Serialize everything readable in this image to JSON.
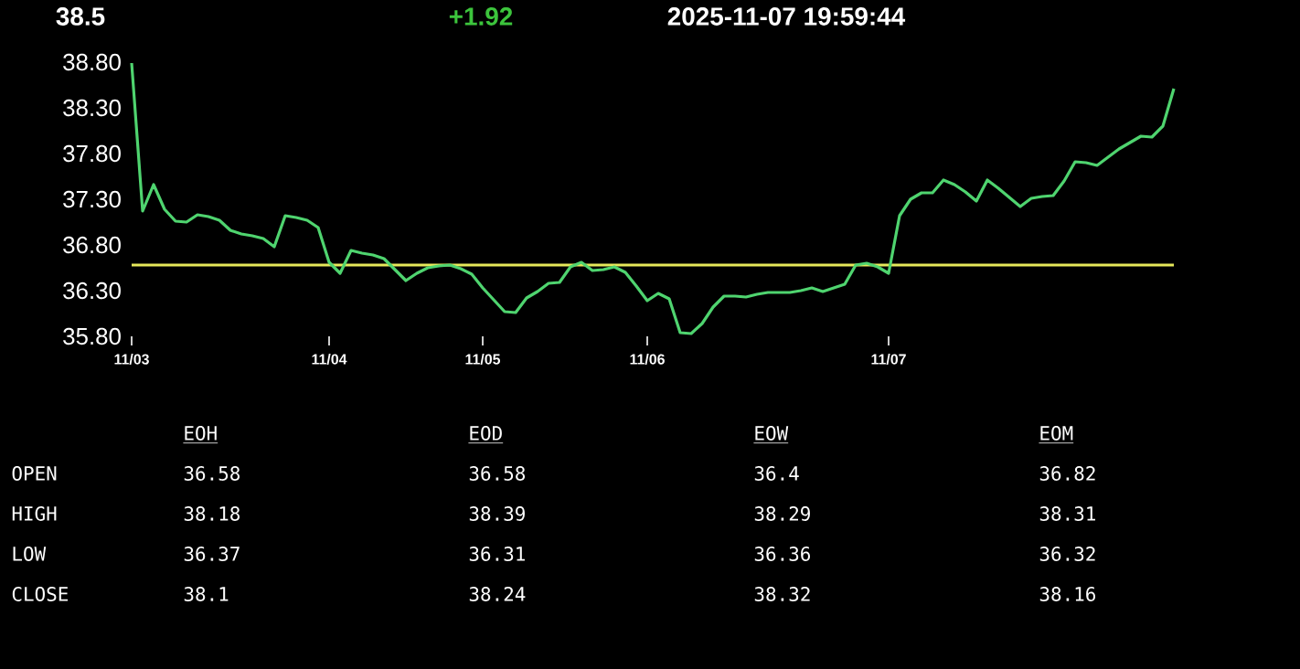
{
  "chart_data": [
    {
      "type": "line",
      "color": "#4fd46f",
      "marker": "none",
      "annotations": [
        "38.5",
        "+1.92",
        "2025-11-07 19:59:44"
      ],
      "categories": [
        "11/03",
        null,
        null,
        null,
        null,
        null,
        null,
        null,
        null,
        null,
        null,
        null,
        null,
        null,
        null,
        null,
        null,
        null,
        "11/04",
        null,
        null,
        null,
        null,
        null,
        null,
        null,
        null,
        null,
        null,
        null,
        null,
        null,
        "11/05",
        null,
        null,
        null,
        null,
        null,
        null,
        null,
        null,
        null,
        null,
        null,
        null,
        null,
        null,
        "11/06",
        null,
        null,
        null,
        null,
        null,
        null,
        null,
        null,
        null,
        null,
        null,
        null,
        null,
        null,
        null,
        null,
        null,
        null,
        null,
        null,
        null,
        "11/07",
        null,
        null,
        null,
        null,
        null,
        null,
        null,
        null,
        null,
        null,
        null,
        null,
        null,
        null,
        null,
        null,
        null,
        null,
        null,
        null,
        null,
        null,
        null,
        null,
        null,
        null
      ],
      "values": [
        38.79,
        37.17,
        37.46,
        37.19,
        37.06,
        37.05,
        37.13,
        37.11,
        37.07,
        36.96,
        36.92,
        36.9,
        36.87,
        36.78,
        37.12,
        37.1,
        37.07,
        36.99,
        36.61,
        36.49,
        36.74,
        36.71,
        36.69,
        36.65,
        36.53,
        36.41,
        36.49,
        36.55,
        36.57,
        36.58,
        36.54,
        36.48,
        36.33,
        36.2,
        36.07,
        36.06,
        36.22,
        36.29,
        36.38,
        36.39,
        36.56,
        36.61,
        36.52,
        36.53,
        36.56,
        36.5,
        36.35,
        36.19,
        36.27,
        36.21,
        35.84,
        35.83,
        35.94,
        36.12,
        36.24,
        36.24,
        36.23,
        36.26,
        36.28,
        36.28,
        36.28,
        36.3,
        36.33,
        36.29,
        36.33,
        36.37,
        36.58,
        36.6,
        36.56,
        36.49,
        37.12,
        37.3,
        37.37,
        37.37,
        37.51,
        37.46,
        37.38,
        37.28,
        37.51,
        37.42,
        37.32,
        37.22,
        37.31,
        37.33,
        37.34,
        37.5,
        37.71,
        37.7,
        37.67,
        37.76,
        37.85,
        37.92,
        37.99,
        37.98,
        38.1,
        38.51
      ],
      "ylim": [
        35.8,
        38.8
      ],
      "yticks": [
        {
          "value": 35.8,
          "label": "35.80"
        },
        {
          "value": 36.3,
          "label": "36.30"
        },
        {
          "value": 36.8,
          "label": "36.80"
        },
        {
          "value": 37.3,
          "label": "37.30"
        },
        {
          "value": 37.8,
          "label": "37.80"
        },
        {
          "value": 38.3,
          "label": "38.30"
        },
        {
          "value": 38.8,
          "label": "38.80"
        }
      ],
      "ref_lines": [
        {
          "axis": "y",
          "value": 36.58,
          "color": "#e6e85a"
        }
      ]
    },
    {
      "type": "other",
      "annotations": [
        "EOH",
        "EOD",
        "EOW",
        "EOM",
        "OPEN",
        "36.58",
        "36.58",
        "36.4",
        "36.82",
        "HIGH",
        "38.18",
        "38.39",
        "38.29",
        "38.31",
        "LOW",
        "36.37",
        "36.31",
        "36.36",
        "36.32",
        "CLOSE",
        "38.1",
        "38.24",
        "38.32",
        "38.16"
      ]
    }
  ]
}
